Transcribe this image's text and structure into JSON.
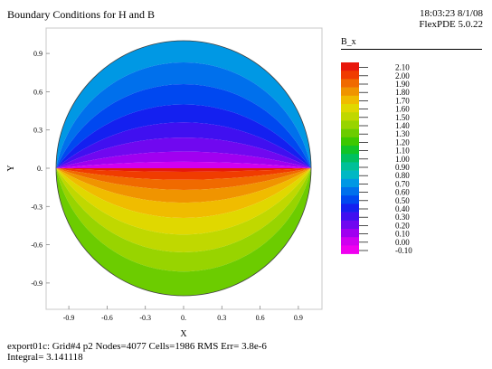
{
  "header": {
    "title": "Boundary Conditions for H and B",
    "time_date": "18:03:23 8/1/08",
    "version": "FlexPDE 5.0.22"
  },
  "footer": {
    "line1": "export01c:  Grid#4  p2  Nodes=4077 Cells=1986 RMS Err= 3.8e-6",
    "line2": "Integral=  3.141118"
  },
  "chart_data": {
    "type": "heatmap",
    "title": "Boundary Conditions for H and B",
    "xlabel": "X",
    "ylabel": "Y",
    "xlim": [
      -1.05,
      1.05
    ],
    "ylim": [
      -1.05,
      1.05
    ],
    "x_ticks": [
      -0.9,
      -0.6,
      -0.3,
      0,
      0.3,
      0.6,
      0.9
    ],
    "x_tick_labels": [
      "-0.9",
      "-0.6",
      "-0.3",
      "0.",
      "0.3",
      "0.6",
      "0.9"
    ],
    "y_ticks": [
      0.9,
      0.6,
      0.3,
      0,
      -0.3,
      -0.6,
      -0.9
    ],
    "y_tick_labels": [
      "0.9",
      "0.6",
      "0.3",
      "0.",
      "-0.3",
      "-0.6",
      "-0.9"
    ],
    "domain": "circle of radius 1",
    "variable": "B_x",
    "legend": {
      "title": "B_x",
      "levels": [
        {
          "label": "2.10",
          "color": "#e8180c"
        },
        {
          "label": "2.00",
          "color": "#f03c00"
        },
        {
          "label": "1.90",
          "color": "#f06a00"
        },
        {
          "label": "1.80",
          "color": "#f09400"
        },
        {
          "label": "1.70",
          "color": "#f0bc00"
        },
        {
          "label": "1.60",
          "color": "#e0d800"
        },
        {
          "label": "1.50",
          "color": "#c0d800"
        },
        {
          "label": "1.40",
          "color": "#98d400"
        },
        {
          "label": "1.30",
          "color": "#6ccc00"
        },
        {
          "label": "1.20",
          "color": "#3cc800"
        },
        {
          "label": "1.10",
          "color": "#10c428"
        },
        {
          "label": "1.00",
          "color": "#00c060"
        },
        {
          "label": "0.90",
          "color": "#00c098"
        },
        {
          "label": "0.80",
          "color": "#00b8c4"
        },
        {
          "label": "0.70",
          "color": "#0098e4"
        },
        {
          "label": "0.60",
          "color": "#0070ec"
        },
        {
          "label": "0.50",
          "color": "#0048f0"
        },
        {
          "label": "0.40",
          "color": "#1420f0"
        },
        {
          "label": "0.30",
          "color": "#4010f0"
        },
        {
          "label": "0.20",
          "color": "#7008f0"
        },
        {
          "label": "0.10",
          "color": "#a000f0"
        },
        {
          "label": "0.00",
          "color": "#d000f0"
        },
        {
          "label": "-0.10",
          "color": "#f000f0"
        }
      ]
    },
    "contour_bands_top_half": [
      0.7,
      0.6,
      0.5,
      0.4,
      0.3,
      0.2,
      0.1,
      0.0
    ],
    "contour_bands_bottom_half": [
      2.1,
      2.0,
      1.9,
      1.8,
      1.7,
      1.6,
      1.5,
      1.4,
      1.3
    ]
  }
}
